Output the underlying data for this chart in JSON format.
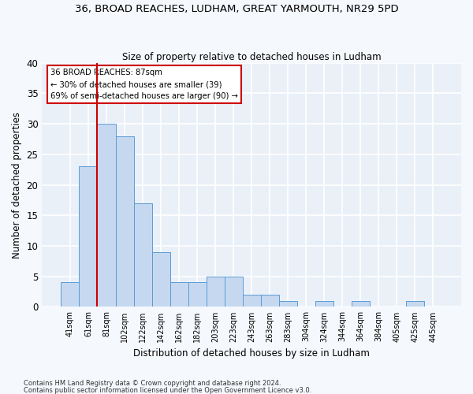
{
  "title": "36, BROAD REACHES, LUDHAM, GREAT YARMOUTH, NR29 5PD",
  "subtitle": "Size of property relative to detached houses in Ludham",
  "xlabel": "Distribution of detached houses by size in Ludham",
  "ylabel": "Number of detached properties",
  "categories": [
    "41sqm",
    "61sqm",
    "81sqm",
    "102sqm",
    "122sqm",
    "142sqm",
    "162sqm",
    "182sqm",
    "203sqm",
    "223sqm",
    "243sqm",
    "263sqm",
    "283sqm",
    "304sqm",
    "324sqm",
    "344sqm",
    "364sqm",
    "384sqm",
    "405sqm",
    "425sqm",
    "445sqm"
  ],
  "values": [
    4,
    23,
    30,
    28,
    17,
    9,
    4,
    4,
    5,
    5,
    2,
    2,
    1,
    0,
    1,
    0,
    1,
    0,
    0,
    1,
    0
  ],
  "bar_color": "#c5d8f0",
  "bar_edge_color": "#5b9bd5",
  "background_color": "#eaf0f8",
  "grid_color": "#ffffff",
  "property_label": "36 BROAD REACHES: 87sqm",
  "annotation_line1": "← 30% of detached houses are smaller (39)",
  "annotation_line2": "69% of semi-detached houses are larger (90) →",
  "vline_x_index": 2,
  "vline_color": "#cc0000",
  "ylim": [
    0,
    40
  ],
  "yticks": [
    0,
    5,
    10,
    15,
    20,
    25,
    30,
    35,
    40
  ],
  "footnote1": "Contains HM Land Registry data © Crown copyright and database right 2024.",
  "footnote2": "Contains public sector information licensed under the Open Government Licence v3.0."
}
